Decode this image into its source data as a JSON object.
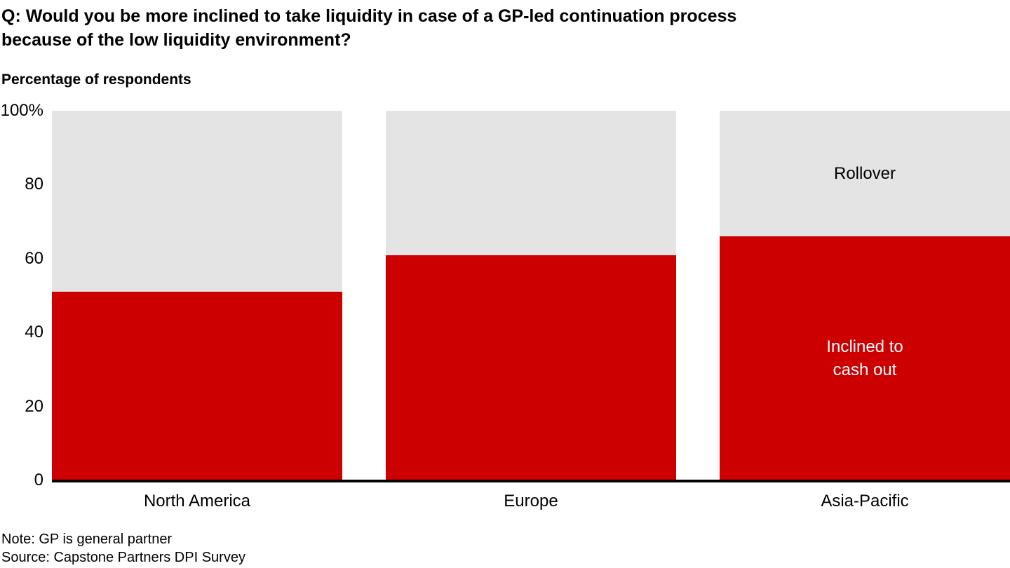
{
  "header": {
    "title_line1": "Q: Would you be more inclined to take liquidity in case of a GP-led continuation process",
    "title_line2": "because of the low liquidity environment?",
    "subtitle": "Percentage of respondents"
  },
  "chart_data": {
    "type": "bar",
    "stacked": true,
    "title": "Q: Would you be more inclined to take liquidity in case of a GP-led continuation process because of the low liquidity environment?",
    "ylabel": "Percentage of respondents",
    "xlabel": "",
    "ylim": [
      0,
      100
    ],
    "grid": false,
    "legend_position": "labels-on-last-bar",
    "label_bar_index": 2,
    "categories": [
      "North America",
      "Europe",
      "Asia-Pacific"
    ],
    "series": [
      {
        "name": "Inclined to cash out",
        "values": [
          51,
          61,
          66
        ],
        "color": "#CC0000"
      },
      {
        "name": "Rollover",
        "values": [
          49,
          39,
          34
        ],
        "color": "#E4E4E4"
      }
    ],
    "y_ticks": [
      "100%",
      "80",
      "60",
      "40",
      "20",
      "0"
    ],
    "axis_color": "#000000"
  },
  "footer": {
    "note": "Note: GP is general partner",
    "source": "Source: Capstone Partners DPI Survey"
  }
}
